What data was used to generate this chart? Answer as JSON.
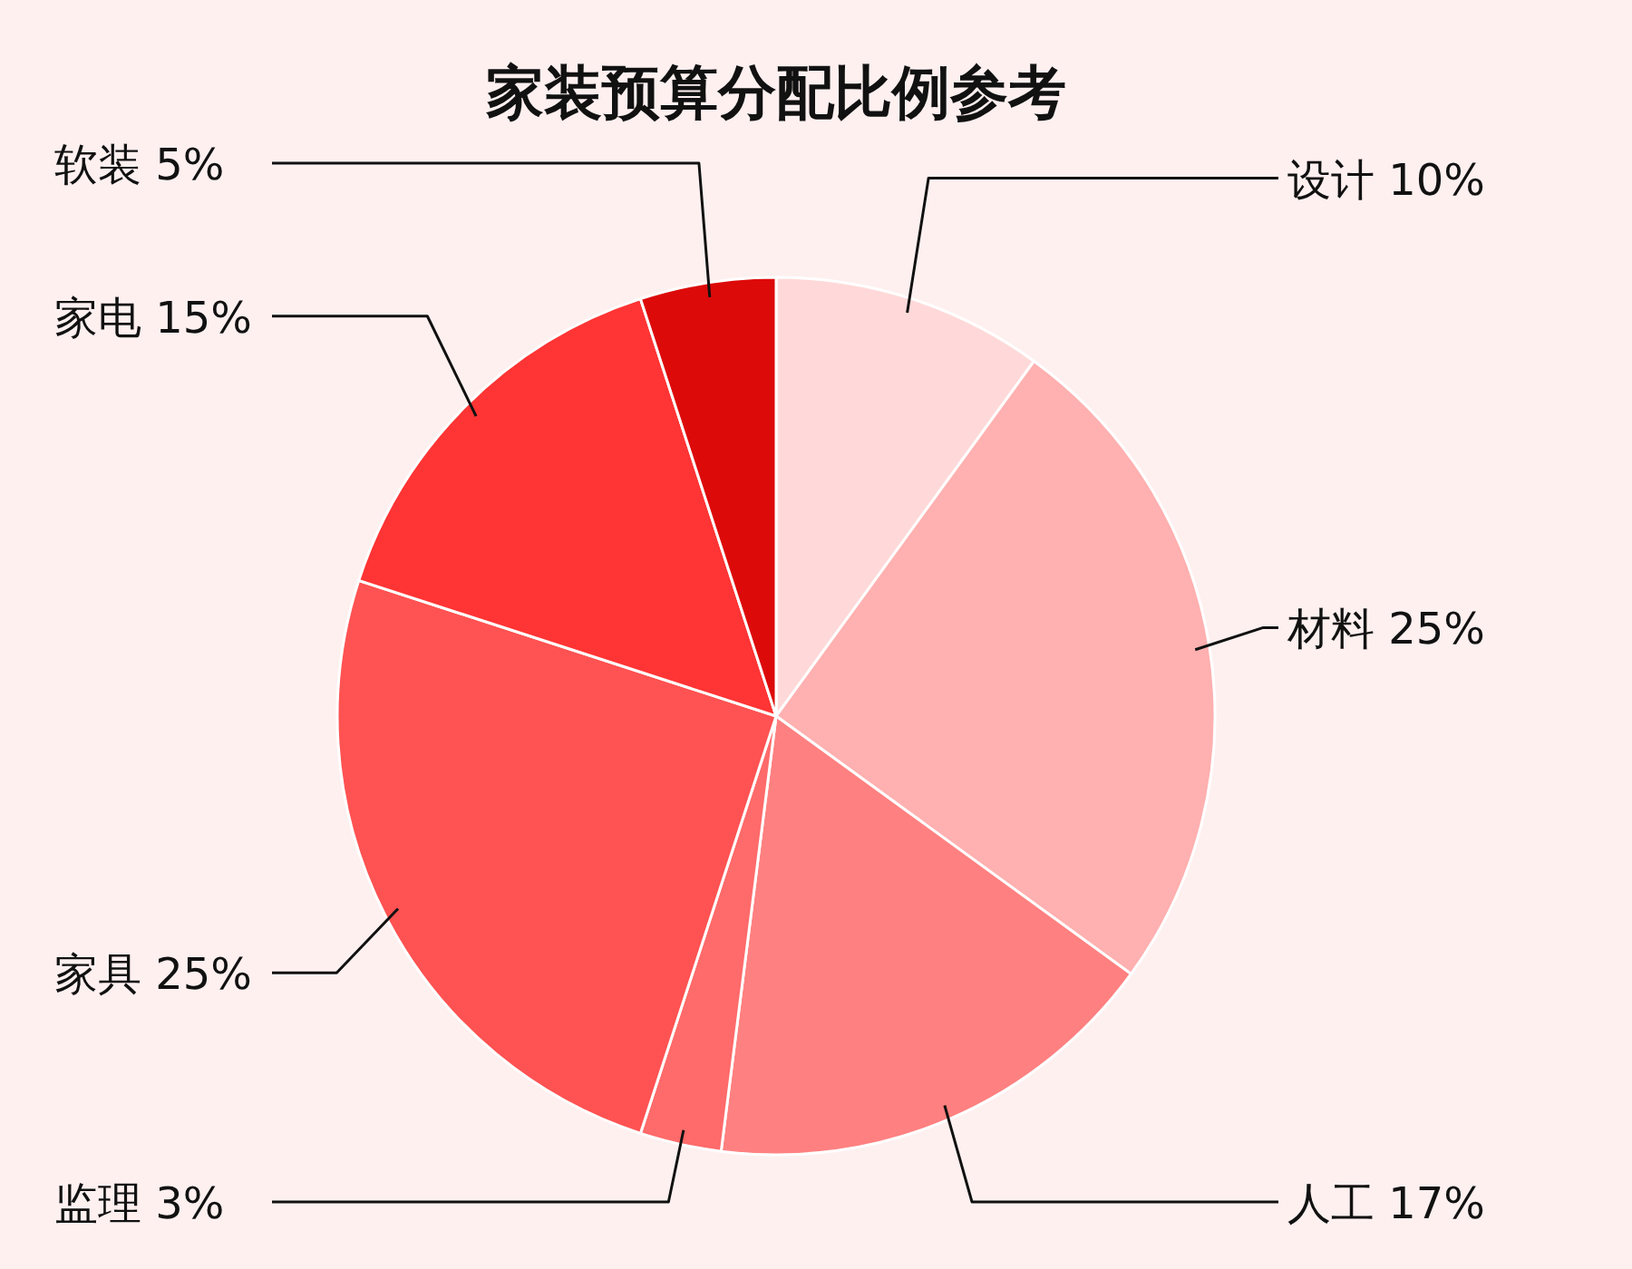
{
  "chart_data": {
    "type": "pie",
    "title": "家装预算分配比例参考",
    "categories": [
      "设计",
      "材料",
      "人工",
      "监理",
      "家具",
      "家电",
      "软装"
    ],
    "values": [
      10,
      25,
      17,
      3,
      25,
      15,
      5
    ],
    "value_labels": [
      "10%",
      "25%",
      "17%",
      "3%",
      "25%",
      "15%",
      "5%"
    ],
    "colors": [
      "#ffd9d9",
      "#ffb0b0",
      "#ff8080",
      "#ff6a6a",
      "#ff5252",
      "#ff3434",
      "#dd0a0a"
    ]
  }
}
